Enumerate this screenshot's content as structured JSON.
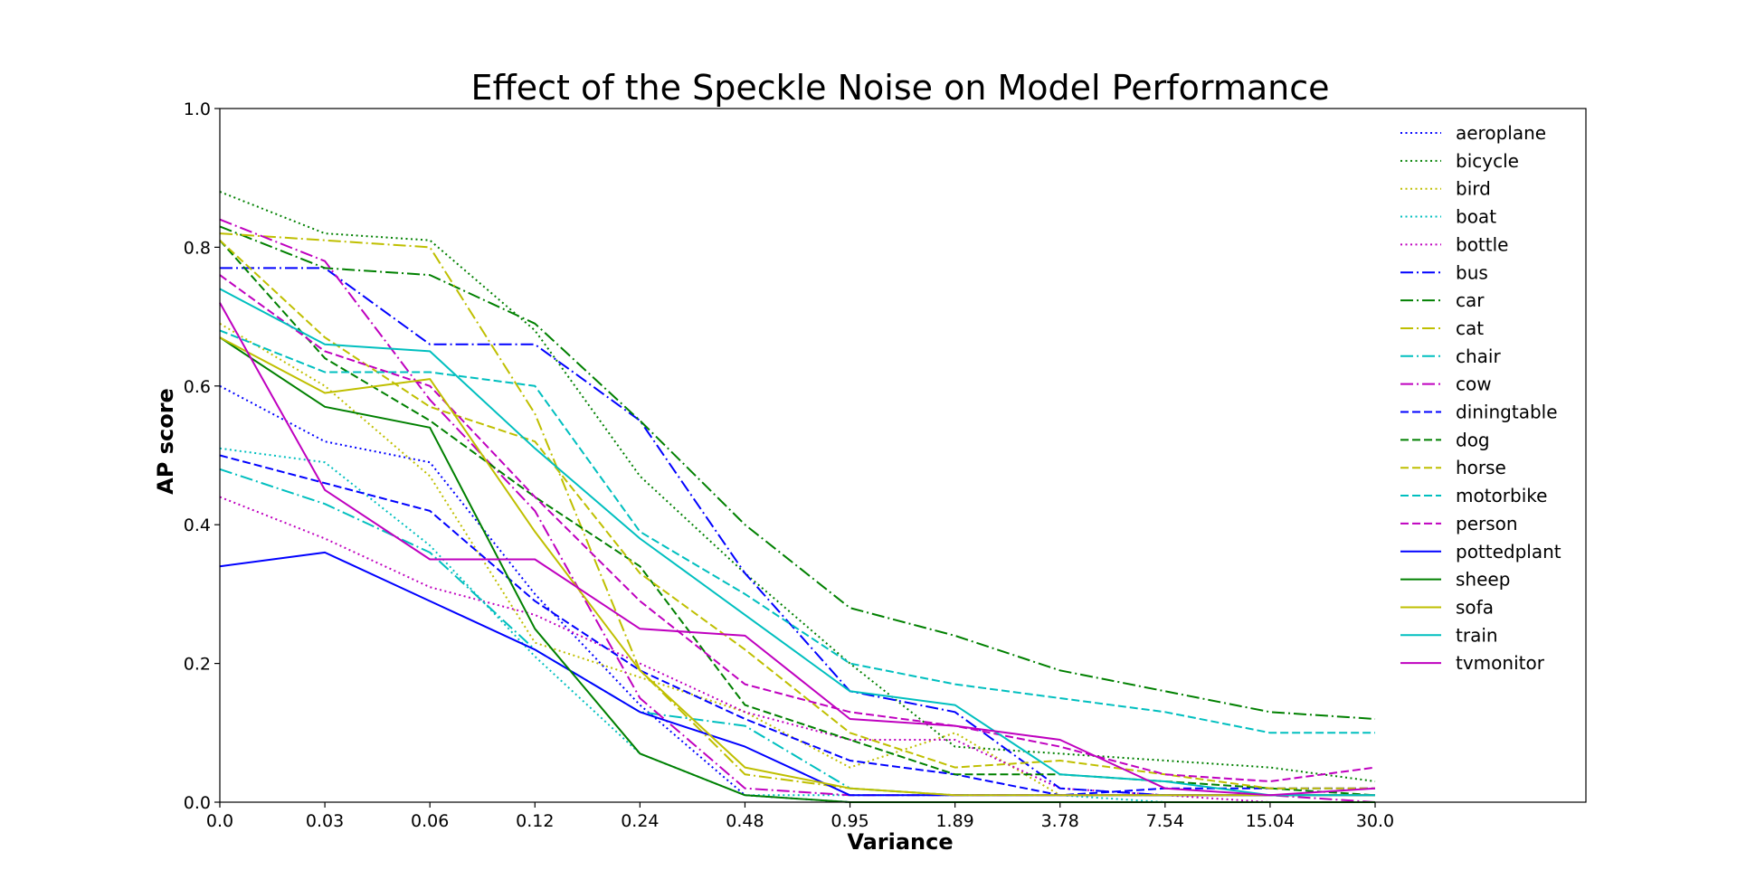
{
  "chart_data": {
    "type": "line",
    "title": "Effect of the Speckle Noise on Model Performance",
    "xlabel": "Variance",
    "ylabel": "AP score",
    "x": [
      "0.0",
      "0.03",
      "0.06",
      "0.12",
      "0.24",
      "0.48",
      "0.95",
      "1.89",
      "3.78",
      "7.54",
      "15.04",
      "30.0"
    ],
    "ylim": [
      0,
      1
    ],
    "yticks": [
      "0.0",
      "0.2",
      "0.4",
      "0.6",
      "0.8",
      "1.0"
    ],
    "grid": false,
    "legend_position": "top-right",
    "series": [
      {
        "name": "aeroplane",
        "color": "#0000ff",
        "dash": "dotted",
        "values": [
          0.6,
          0.52,
          0.49,
          0.3,
          0.14,
          0.01,
          0.0,
          0.0,
          0.0,
          0.0,
          0.0,
          0.0
        ]
      },
      {
        "name": "bicycle",
        "color": "#008000",
        "dash": "dotted",
        "values": [
          0.88,
          0.82,
          0.81,
          0.68,
          0.47,
          0.33,
          0.2,
          0.08,
          0.07,
          0.06,
          0.05,
          0.03
        ]
      },
      {
        "name": "bird",
        "color": "#bfbf00",
        "dash": "dotted",
        "values": [
          0.69,
          0.6,
          0.47,
          0.23,
          0.18,
          0.13,
          0.05,
          0.1,
          0.01,
          0.01,
          0.01,
          0.01
        ]
      },
      {
        "name": "boat",
        "color": "#00bfbf",
        "dash": "dotted",
        "values": [
          0.51,
          0.49,
          0.37,
          0.21,
          0.07,
          0.01,
          0.01,
          0.01,
          0.01,
          0.0,
          0.0,
          0.0
        ]
      },
      {
        "name": "bottle",
        "color": "#bf00bf",
        "dash": "dotted",
        "values": [
          0.44,
          0.38,
          0.31,
          0.27,
          0.2,
          0.13,
          0.09,
          0.09,
          0.02,
          0.01,
          0.0,
          0.0
        ]
      },
      {
        "name": "bus",
        "color": "#0000ff",
        "dash": "dashdot",
        "values": [
          0.77,
          0.77,
          0.66,
          0.66,
          0.55,
          0.33,
          0.16,
          0.13,
          0.02,
          0.01,
          0.01,
          0.01
        ]
      },
      {
        "name": "car",
        "color": "#008000",
        "dash": "dashdot",
        "values": [
          0.83,
          0.77,
          0.76,
          0.69,
          0.55,
          0.4,
          0.28,
          0.24,
          0.19,
          0.16,
          0.13,
          0.12
        ]
      },
      {
        "name": "cat",
        "color": "#bfbf00",
        "dash": "dashdot",
        "values": [
          0.82,
          0.81,
          0.8,
          0.56,
          0.19,
          0.04,
          0.02,
          0.01,
          0.01,
          0.01,
          0.01,
          0.01
        ]
      },
      {
        "name": "chair",
        "color": "#00bfbf",
        "dash": "dashdot",
        "values": [
          0.48,
          0.43,
          0.36,
          0.22,
          0.13,
          0.11,
          0.02,
          0.01,
          0.01,
          0.01,
          0.01,
          0.01
        ]
      },
      {
        "name": "cow",
        "color": "#bf00bf",
        "dash": "dashdot",
        "values": [
          0.84,
          0.78,
          0.58,
          0.42,
          0.15,
          0.02,
          0.01,
          0.01,
          0.01,
          0.01,
          0.01,
          0.0
        ]
      },
      {
        "name": "diningtable",
        "color": "#0000ff",
        "dash": "dashed",
        "values": [
          0.5,
          0.46,
          0.42,
          0.29,
          0.19,
          0.12,
          0.06,
          0.04,
          0.01,
          0.02,
          0.02,
          0.02
        ]
      },
      {
        "name": "dog",
        "color": "#008000",
        "dash": "dashed",
        "values": [
          0.81,
          0.64,
          0.55,
          0.44,
          0.34,
          0.14,
          0.09,
          0.04,
          0.04,
          0.03,
          0.02,
          0.01
        ]
      },
      {
        "name": "horse",
        "color": "#bfbf00",
        "dash": "dashed",
        "values": [
          0.81,
          0.67,
          0.57,
          0.52,
          0.33,
          0.22,
          0.1,
          0.05,
          0.06,
          0.04,
          0.02,
          0.02
        ]
      },
      {
        "name": "motorbike",
        "color": "#00bfbf",
        "dash": "dashed",
        "values": [
          0.68,
          0.62,
          0.62,
          0.6,
          0.39,
          0.3,
          0.2,
          0.17,
          0.15,
          0.13,
          0.1,
          0.1
        ]
      },
      {
        "name": "person",
        "color": "#bf00bf",
        "dash": "dashed",
        "values": [
          0.76,
          0.65,
          0.6,
          0.44,
          0.29,
          0.17,
          0.13,
          0.11,
          0.08,
          0.04,
          0.03,
          0.05
        ]
      },
      {
        "name": "pottedplant",
        "color": "#0000ff",
        "dash": "solid",
        "values": [
          0.34,
          0.36,
          0.29,
          0.22,
          0.13,
          0.08,
          0.01,
          0.01,
          0.01,
          0.01,
          0.01,
          0.01
        ]
      },
      {
        "name": "sheep",
        "color": "#008000",
        "dash": "solid",
        "values": [
          0.67,
          0.57,
          0.54,
          0.25,
          0.07,
          0.01,
          0.0,
          0.0,
          0.0,
          0.0,
          0.0,
          0.0
        ]
      },
      {
        "name": "sofa",
        "color": "#bfbf00",
        "dash": "solid",
        "values": [
          0.67,
          0.59,
          0.61,
          0.39,
          0.19,
          0.05,
          0.02,
          0.01,
          0.01,
          0.01,
          0.01,
          0.01
        ]
      },
      {
        "name": "train",
        "color": "#00bfbf",
        "dash": "solid",
        "values": [
          0.74,
          0.66,
          0.65,
          0.51,
          0.38,
          0.27,
          0.16,
          0.14,
          0.04,
          0.03,
          0.01,
          0.01
        ]
      },
      {
        "name": "tvmonitor",
        "color": "#bf00bf",
        "dash": "solid",
        "values": [
          0.72,
          0.45,
          0.35,
          0.35,
          0.25,
          0.24,
          0.12,
          0.11,
          0.09,
          0.02,
          0.01,
          0.02
        ]
      }
    ]
  }
}
